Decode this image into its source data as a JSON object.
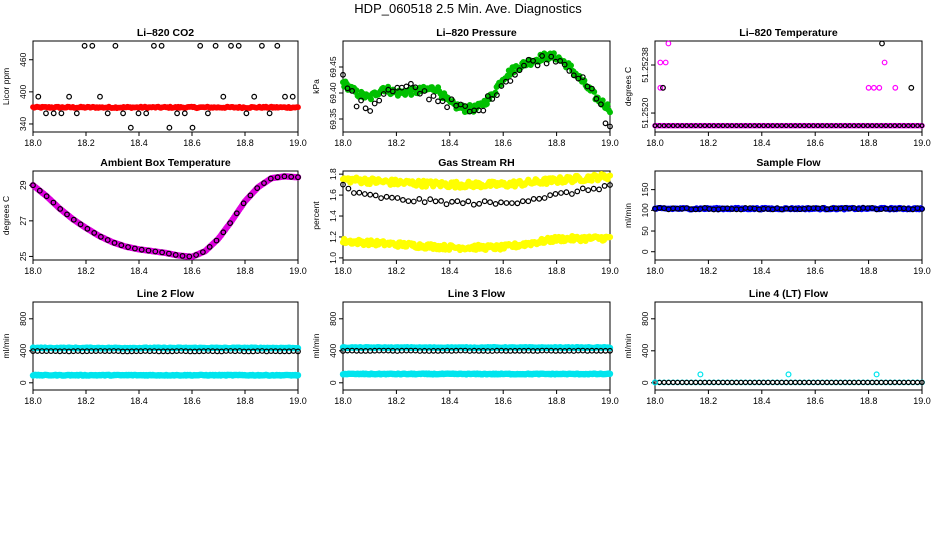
{
  "page": {
    "title": "HDP_060518  2.5 Min. Ave. Diagnostics"
  },
  "chart_data": [
    {
      "type": "scatter",
      "title": "Li–820 CO2",
      "ylabel": "Licor ppm",
      "xlabel": "",
      "xlim": [
        18.0,
        19.0
      ],
      "ylim": [
        325,
        495
      ],
      "xticks": [
        "18.0",
        "18.2",
        "18.4",
        "18.6",
        "18.8",
        "19.0"
      ],
      "yticks": [
        {
          "v": 340,
          "label": "340"
        },
        {
          "v": 400,
          "label": "400"
        },
        {
          "v": 460,
          "label": "460"
        }
      ],
      "series": [
        {
          "color": "#ff0000",
          "gen": "flat",
          "y": 371,
          "amp": 1.5,
          "n": 200,
          "r": 2.3,
          "filled": true
        },
        {
          "color": "#000000",
          "gen": "levels",
          "levels": [
            333,
            360,
            391,
            486
          ],
          "n": 34,
          "r": 2.3,
          "filled": false
        }
      ]
    },
    {
      "type": "scatter",
      "title": "Li–820 Pressure",
      "ylabel": "kPa",
      "xlabel": "",
      "xlim": [
        18.0,
        19.0
      ],
      "ylim": [
        69.325,
        69.5
      ],
      "xticks": [
        "18.0",
        "18.2",
        "18.4",
        "18.6",
        "18.8",
        "19.0"
      ],
      "yticks": [
        {
          "v": 69.35,
          "label": "69.35"
        },
        {
          "v": 69.4,
          "label": "69.40"
        },
        {
          "v": 69.45,
          "label": "69.45"
        }
      ],
      "series": [
        {
          "color": "#00c000",
          "gen": "curve",
          "curve": [
            [
              18.0,
              69.42
            ],
            [
              18.05,
              69.4
            ],
            [
              18.1,
              69.39
            ],
            [
              18.15,
              69.41
            ],
            [
              18.2,
              69.4
            ],
            [
              18.3,
              69.405
            ],
            [
              18.35,
              69.41
            ],
            [
              18.4,
              69.38
            ],
            [
              18.45,
              69.37
            ],
            [
              18.5,
              69.37
            ],
            [
              18.55,
              69.39
            ],
            [
              18.6,
              69.43
            ],
            [
              18.65,
              69.45
            ],
            [
              18.7,
              69.46
            ],
            [
              18.75,
              69.47
            ],
            [
              18.8,
              69.47
            ],
            [
              18.85,
              69.45
            ],
            [
              18.9,
              69.42
            ],
            [
              18.95,
              69.39
            ],
            [
              19.0,
              69.37
            ]
          ],
          "n": 220,
          "noise": 0.007,
          "r": 2.4,
          "filled": true
        },
        {
          "color": "#000000",
          "gen": "curve",
          "curve": [
            [
              18.0,
              69.43
            ],
            [
              18.05,
              69.38
            ],
            [
              18.1,
              69.37
            ],
            [
              18.15,
              69.4
            ],
            [
              18.25,
              69.41
            ],
            [
              18.3,
              69.4
            ],
            [
              18.4,
              69.38
            ],
            [
              18.45,
              69.37
            ],
            [
              18.5,
              69.36
            ],
            [
              18.55,
              69.39
            ],
            [
              18.6,
              69.42
            ],
            [
              18.7,
              69.46
            ],
            [
              18.8,
              69.47
            ],
            [
              18.85,
              69.45
            ],
            [
              18.9,
              69.42
            ],
            [
              18.95,
              69.39
            ],
            [
              19.0,
              69.33
            ]
          ],
          "n": 60,
          "noise": 0.01,
          "r": 2.3,
          "filled": false
        }
      ]
    },
    {
      "type": "scatter",
      "title": "Li–820 Temperature",
      "ylabel": "degrees C",
      "xlabel": "",
      "xlim": [
        18.0,
        19.0
      ],
      "ylim": [
        51.25185,
        51.25257
      ],
      "xticks": [
        "18.0",
        "18.2",
        "18.4",
        "18.6",
        "18.8",
        "19.0"
      ],
      "yticks": [
        {
          "v": 51.252,
          "label": "51.2520"
        },
        {
          "v": 51.25238,
          "label": "51.25238"
        }
      ],
      "series": [
        {
          "color": "#ff00ff",
          "gen": "flat",
          "y": 51.2519,
          "amp": 0.0,
          "n": 140,
          "r": 2.2,
          "filled": false
        },
        {
          "color": "#000000",
          "gen": "flat",
          "y": 51.2519,
          "amp": 0.0,
          "n": 60,
          "r": 1.8,
          "filled": false
        },
        {
          "color": "#ff00ff",
          "gen": "pts",
          "pts": [
            [
              18.02,
              51.2522
            ],
            [
              18.03,
              51.2522
            ],
            [
              18.02,
              51.2524
            ],
            [
              18.04,
              51.2524
            ],
            [
              18.05,
              51.25255
            ],
            [
              18.8,
              51.2522
            ],
            [
              18.82,
              51.2522
            ],
            [
              18.84,
              51.2522
            ],
            [
              18.86,
              51.2524
            ],
            [
              18.9,
              51.2522
            ]
          ],
          "r": 2.3,
          "filled": false
        },
        {
          "color": "#000000",
          "gen": "pts",
          "pts": [
            [
              18.03,
              51.2522
            ],
            [
              18.85,
              51.25255
            ],
            [
              18.96,
              51.2522
            ]
          ],
          "r": 2.3,
          "filled": false
        }
      ]
    },
    {
      "type": "scatter",
      "title": "Ambient Box Temperature",
      "ylabel": "degrees C",
      "xlabel": "",
      "xlim": [
        18.0,
        19.0
      ],
      "ylim": [
        24.8,
        29.8
      ],
      "xticks": [
        "18.0",
        "18.2",
        "18.4",
        "18.6",
        "18.8",
        "19.0"
      ],
      "yticks": [
        {
          "v": 25,
          "label": "25"
        },
        {
          "v": 27,
          "label": "27"
        },
        {
          "v": 29,
          "label": "29"
        }
      ],
      "series": [
        {
          "color": "#dd00dd",
          "gen": "curve",
          "curve": [
            [
              18.0,
              29.0
            ],
            [
              18.05,
              28.4
            ],
            [
              18.1,
              27.7
            ],
            [
              18.15,
              27.1
            ],
            [
              18.2,
              26.6
            ],
            [
              18.25,
              26.15
            ],
            [
              18.3,
              25.8
            ],
            [
              18.35,
              25.55
            ],
            [
              18.4,
              25.4
            ],
            [
              18.45,
              25.3
            ],
            [
              18.5,
              25.2
            ],
            [
              18.55,
              25.05
            ],
            [
              18.6,
              24.98
            ],
            [
              18.65,
              25.3
            ],
            [
              18.7,
              26.0
            ],
            [
              18.75,
              27.0
            ],
            [
              18.8,
              28.1
            ],
            [
              18.85,
              28.9
            ],
            [
              18.9,
              29.4
            ],
            [
              18.95,
              29.5
            ],
            [
              19.0,
              29.45
            ]
          ],
          "n": 200,
          "noise": 0.0,
          "r": 2.6,
          "filled": true
        },
        {
          "color": "#000000",
          "gen": "curve",
          "curve": [
            [
              18.0,
              29.0
            ],
            [
              18.05,
              28.4
            ],
            [
              18.1,
              27.7
            ],
            [
              18.15,
              27.1
            ],
            [
              18.2,
              26.6
            ],
            [
              18.25,
              26.15
            ],
            [
              18.3,
              25.8
            ],
            [
              18.35,
              25.55
            ],
            [
              18.4,
              25.4
            ],
            [
              18.45,
              25.3
            ],
            [
              18.5,
              25.2
            ],
            [
              18.55,
              25.05
            ],
            [
              18.6,
              24.98
            ],
            [
              18.65,
              25.3
            ],
            [
              18.7,
              26.0
            ],
            [
              18.75,
              27.0
            ],
            [
              18.8,
              28.1
            ],
            [
              18.85,
              28.9
            ],
            [
              18.9,
              29.4
            ],
            [
              18.95,
              29.5
            ],
            [
              19.0,
              29.45
            ]
          ],
          "n": 40,
          "noise": 0.0,
          "r": 2.3,
          "filled": false
        }
      ]
    },
    {
      "type": "scatter",
      "title": "Gas Stream RH",
      "ylabel": "percent",
      "xlabel": "",
      "xlim": [
        18.0,
        19.0
      ],
      "ylim": [
        0.98,
        1.83
      ],
      "xticks": [
        "18.0",
        "18.2",
        "18.4",
        "18.6",
        "18.8",
        "19.0"
      ],
      "yticks": [
        {
          "v": 1.0,
          "label": "1.0"
        },
        {
          "v": 1.2,
          "label": "1.2"
        },
        {
          "v": 1.4,
          "label": "1.4"
        },
        {
          "v": 1.6,
          "label": "1.6"
        },
        {
          "v": 1.8,
          "label": "1.8"
        }
      ],
      "series": [
        {
          "color": "#ffff00",
          "gen": "curve",
          "curve": [
            [
              18.0,
              1.75
            ],
            [
              18.2,
              1.72
            ],
            [
              18.4,
              1.7
            ],
            [
              18.6,
              1.7
            ],
            [
              18.8,
              1.74
            ],
            [
              19.0,
              1.78
            ]
          ],
          "n": 220,
          "noise": 0.03,
          "r": 2.5,
          "filled": true
        },
        {
          "color": "#ffff00",
          "gen": "curve",
          "curve": [
            [
              18.0,
              1.16
            ],
            [
              18.2,
              1.13
            ],
            [
              18.4,
              1.1
            ],
            [
              18.6,
              1.1
            ],
            [
              18.8,
              1.18
            ],
            [
              19.0,
              1.19
            ]
          ],
          "n": 220,
          "noise": 0.025,
          "r": 2.5,
          "filled": true
        },
        {
          "color": "#000000",
          "gen": "curve",
          "curve": [
            [
              18.0,
              1.7
            ],
            [
              18.05,
              1.61
            ],
            [
              18.2,
              1.56
            ],
            [
              18.4,
              1.53
            ],
            [
              18.6,
              1.52
            ],
            [
              18.8,
              1.6
            ],
            [
              19.0,
              1.69
            ]
          ],
          "n": 50,
          "noise": 0.02,
          "r": 2.3,
          "filled": false
        }
      ]
    },
    {
      "type": "scatter",
      "title": "Sample Flow",
      "ylabel": "ml/min",
      "xlabel": "",
      "xlim": [
        18.0,
        19.0
      ],
      "ylim": [
        -20,
        195
      ],
      "xticks": [
        "18.0",
        "18.2",
        "18.4",
        "18.6",
        "18.8",
        "19.0"
      ],
      "yticks": [
        {
          "v": 0,
          "label": "0"
        },
        {
          "v": 50,
          "label": "50"
        },
        {
          "v": 100,
          "label": "100"
        },
        {
          "v": 150,
          "label": "150"
        }
      ],
      "series": [
        {
          "color": "#0000ff",
          "gen": "flat",
          "y": 104,
          "amp": 2,
          "n": 200,
          "r": 2.4,
          "filled": true
        },
        {
          "color": "#000000",
          "gen": "flat",
          "y": 104,
          "amp": 2,
          "n": 60,
          "r": 2.3,
          "filled": false
        }
      ]
    },
    {
      "type": "scatter",
      "title": "Line 2 Flow",
      "ylabel": "ml/min",
      "xlabel": "",
      "xlim": [
        18.0,
        19.0
      ],
      "ylim": [
        -90,
        1010
      ],
      "xticks": [
        "18.0",
        "18.2",
        "18.4",
        "18.6",
        "18.8",
        "19.0"
      ],
      "yticks": [
        {
          "v": 0,
          "label": "0"
        },
        {
          "v": 400,
          "label": "400"
        },
        {
          "v": 800,
          "label": "800"
        }
      ],
      "series": [
        {
          "color": "#00e5ee",
          "gen": "flat",
          "y": 435,
          "amp": 5,
          "n": 200,
          "r": 2.6,
          "filled": true
        },
        {
          "color": "#00e5ee",
          "gen": "flat",
          "y": 95,
          "amp": 5,
          "n": 200,
          "r": 2.6,
          "filled": true
        },
        {
          "color": "#000000",
          "gen": "flat",
          "y": 395,
          "amp": 3,
          "n": 60,
          "r": 2.3,
          "filled": false
        }
      ]
    },
    {
      "type": "scatter",
      "title": "Line 3 Flow",
      "ylabel": "ml/min",
      "xlabel": "",
      "xlim": [
        18.0,
        19.0
      ],
      "ylim": [
        -90,
        1010
      ],
      "xticks": [
        "18.0",
        "18.2",
        "18.4",
        "18.6",
        "18.8",
        "19.0"
      ],
      "yticks": [
        {
          "v": 0,
          "label": "0"
        },
        {
          "v": 400,
          "label": "400"
        },
        {
          "v": 800,
          "label": "800"
        }
      ],
      "series": [
        {
          "color": "#00e5ee",
          "gen": "flat",
          "y": 440,
          "amp": 5,
          "n": 200,
          "r": 2.6,
          "filled": true
        },
        {
          "color": "#00e5ee",
          "gen": "flat",
          "y": 110,
          "amp": 5,
          "n": 200,
          "r": 2.6,
          "filled": true
        },
        {
          "color": "#000000",
          "gen": "flat",
          "y": 400,
          "amp": 3,
          "n": 60,
          "r": 2.3,
          "filled": false
        }
      ]
    },
    {
      "type": "scatter",
      "title": "Line 4 (LT) Flow",
      "ylabel": "ml/min",
      "xlabel": "",
      "xlim": [
        18.0,
        19.0
      ],
      "ylim": [
        -90,
        1010
      ],
      "xticks": [
        "18.0",
        "18.2",
        "18.4",
        "18.6",
        "18.8",
        "19.0"
      ],
      "yticks": [
        {
          "v": 0,
          "label": "0"
        },
        {
          "v": 400,
          "label": "400"
        },
        {
          "v": 800,
          "label": "800"
        }
      ],
      "series": [
        {
          "color": "#00e5ee",
          "gen": "flat",
          "y": 5,
          "amp": 0,
          "n": 60,
          "r": 2.3,
          "filled": false
        },
        {
          "color": "#000000",
          "gen": "flat",
          "y": 5,
          "amp": 0,
          "n": 60,
          "r": 2.1,
          "filled": false
        },
        {
          "color": "#00e5ee",
          "gen": "pts",
          "pts": [
            [
              18.0,
              5
            ],
            [
              18.17,
              105
            ],
            [
              18.5,
              105
            ],
            [
              18.83,
              105
            ]
          ],
          "r": 2.4,
          "filled": false
        }
      ]
    }
  ]
}
